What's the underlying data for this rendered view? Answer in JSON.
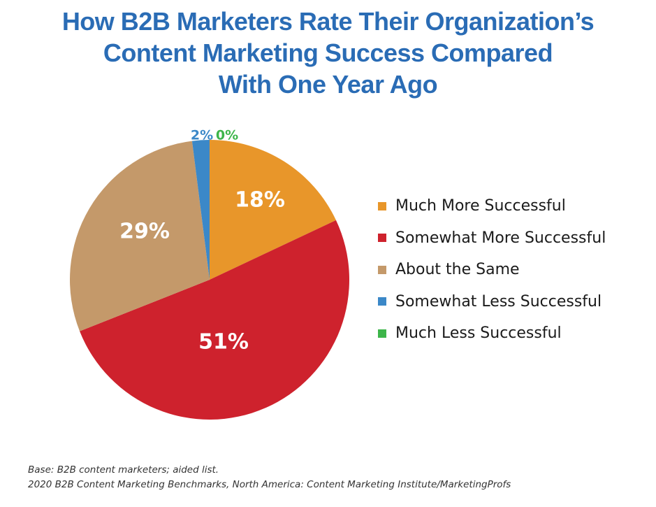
{
  "chart_data": {
    "type": "pie",
    "title": [
      "How B2B Marketers Rate Their Organization’s",
      "Content Marketing Success Compared",
      "With One Year Ago"
    ],
    "start": "12 o'clock, clockwise",
    "slices": [
      {
        "name": "Much More Successful",
        "value": 18,
        "label": "18%",
        "color": "#E8962A"
      },
      {
        "name": "Somewhat More Successful",
        "value": 51,
        "label": "51%",
        "color": "#CE222D"
      },
      {
        "name": "About the Same",
        "value": 29,
        "label": "29%",
        "color": "#C4996A"
      },
      {
        "name": "Somewhat Less Successful",
        "value": 2,
        "label": "2%",
        "color": "#3B88C8"
      },
      {
        "name": "Much Less Successful",
        "value": 0,
        "label": "0%",
        "color": "#3DB54A"
      }
    ],
    "legend_position": "right"
  },
  "footnotes": [
    "Base: B2B content marketers; aided list.",
    "2020 B2B Content Marketing Benchmarks, North America: Content Marketing Institute/MarketingProfs"
  ],
  "colors": {
    "title": "#2A6CB5"
  }
}
